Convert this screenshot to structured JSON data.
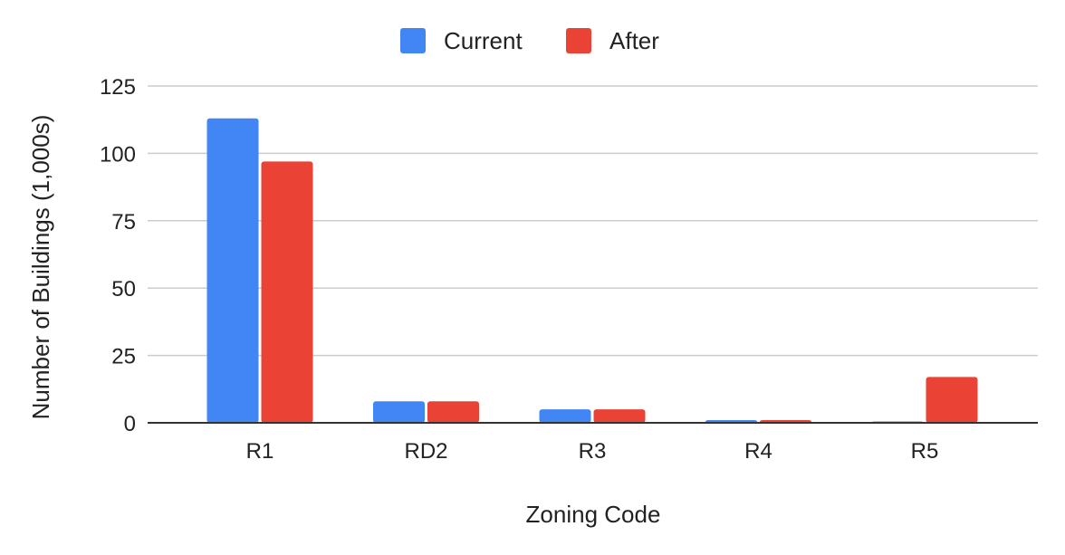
{
  "chart_data": {
    "type": "bar",
    "categories": [
      "R1",
      "RD2",
      "R3",
      "R4",
      "R5"
    ],
    "series": [
      {
        "name": "Current",
        "values": [
          113,
          8,
          5,
          1,
          0.3
        ],
        "color": "#4285F4"
      },
      {
        "name": "After",
        "values": [
          97,
          8,
          5,
          1,
          17
        ],
        "color": "#EA4335"
      }
    ],
    "xlabel": "Zoning Code",
    "ylabel": "Number of Buildings (1,000s)",
    "ylim": [
      0,
      125
    ],
    "yticks": [
      0,
      25,
      50,
      75,
      100,
      125
    ],
    "grid": true,
    "legend_position": "top-center"
  }
}
